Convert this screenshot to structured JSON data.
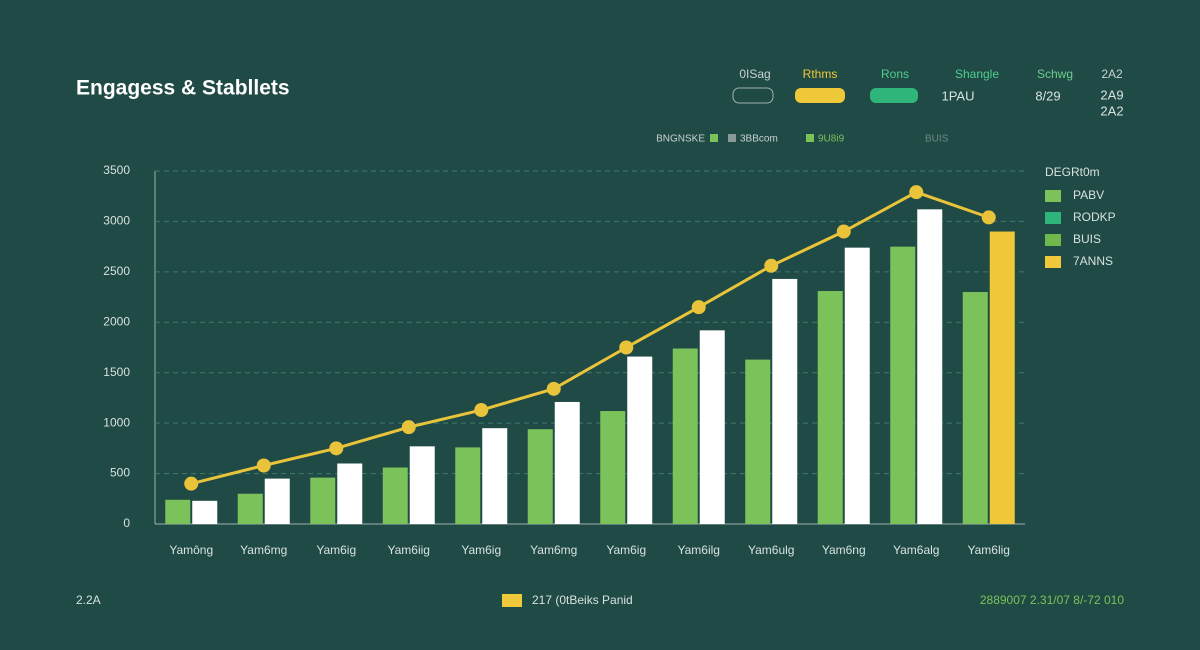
{
  "header": {
    "items": [
      "0ISag",
      "Rthms",
      "Rons",
      "Shangle",
      "Schwg",
      "2A2"
    ],
    "values": [
      "1PAU",
      "8/29",
      "2A9",
      "2A2"
    ]
  },
  "filters": [
    "BNGNSKE",
    "3BBcom",
    "9U8i9",
    "BUIS"
  ],
  "footer": {
    "left": "2.2A",
    "center": "217 (0tBeiks Panid",
    "right": "2889007 2.31/07 8/-72 010"
  },
  "legend": {
    "title": "DEGRt0m",
    "items": [
      {
        "label": "PABV",
        "color": "#7cc25a"
      },
      {
        "label": "RODKP",
        "color": "#2fb57a"
      },
      {
        "label": "BUIS",
        "color": "#6fb84e"
      },
      {
        "label": "7ANNS",
        "color": "#f0c93a"
      }
    ]
  },
  "chart_data": {
    "type": "bar",
    "title": "Engagess & Stabllets",
    "categories": [
      "Yamông",
      "Yam6mg",
      "Yam6ig",
      "Yam6iig",
      "Yam6ig",
      "Yam6mg",
      "Yam6ig",
      "Yam6ilg",
      "Yam6ulg",
      "Yam6ng",
      "Yam6alg",
      "Yam6lig"
    ],
    "series": [
      {
        "type": "bar",
        "color": "#7cc25a",
        "values": [
          240,
          300,
          460,
          560,
          760,
          940,
          1120,
          1740,
          1630,
          2310,
          2750,
          2300
        ]
      },
      {
        "type": "bar",
        "color": "#ffffff",
        "point_colors": [
          "#ffffff",
          "#ffffff",
          "#ffffff",
          "#ffffff",
          "#ffffff",
          "#ffffff",
          "#ffffff",
          "#ffffff",
          "#ffffff",
          "#ffffff",
          "#ffffff",
          "#f0c93a"
        ],
        "values": [
          230,
          450,
          600,
          770,
          950,
          1210,
          1660,
          1920,
          2430,
          2740,
          3120,
          2900
        ]
      },
      {
        "type": "line",
        "color": "#e9c43a",
        "values": [
          400,
          580,
          750,
          960,
          1130,
          1340,
          1750,
          2150,
          2560,
          2900,
          3290,
          3040
        ]
      }
    ],
    "ylim": [
      0,
      3500
    ],
    "yticks": [
      0,
      500,
      1000,
      1500,
      2000,
      2500,
      3000,
      3500
    ],
    "grid": true
  }
}
